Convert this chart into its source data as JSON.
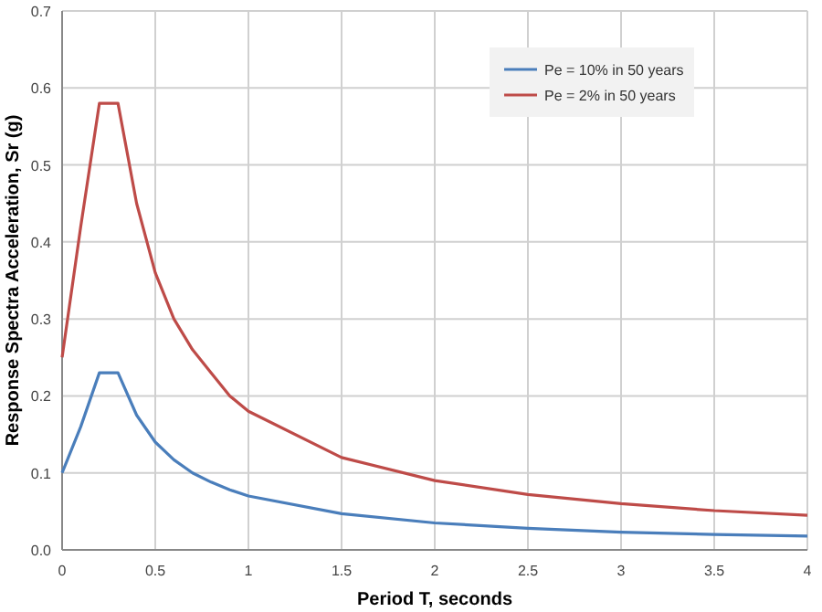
{
  "chart_data": {
    "type": "line",
    "xlabel": "Period T, seconds",
    "ylabel": "Response Spectra Acceleration, Sr (g)",
    "x": [
      0,
      0.1,
      0.2,
      0.3,
      0.4,
      0.5,
      0.6,
      0.7,
      0.8,
      0.9,
      1,
      1.5,
      2,
      2.5,
      3,
      3.5,
      4
    ],
    "series": [
      {
        "name": "Pe = 10% in 50 years",
        "color": "#4a7ebb",
        "values": [
          0.1,
          0.16,
          0.23,
          0.23,
          0.175,
          0.14,
          0.117,
          0.1,
          0.088,
          0.078,
          0.07,
          0.047,
          0.035,
          0.028,
          0.023,
          0.02,
          0.018
        ]
      },
      {
        "name": "Pe = 2% in 50 years",
        "color": "#be4b48",
        "values": [
          0.25,
          0.42,
          0.58,
          0.58,
          0.45,
          0.36,
          0.3,
          0.26,
          0.23,
          0.2,
          0.18,
          0.12,
          0.09,
          0.072,
          0.06,
          0.051,
          0.045
        ]
      }
    ],
    "xlim": [
      0,
      4
    ],
    "xticks": [
      0,
      0.5,
      1,
      1.5,
      2,
      2.5,
      3,
      3.5,
      4
    ],
    "ylim": [
      0,
      0.7
    ],
    "yticks": [
      {
        "value": 0,
        "label": "0.0"
      },
      0.1,
      0.2,
      0.3,
      0.4,
      0.5,
      0.6,
      0.7
    ],
    "grid": true,
    "legend": "top right",
    "marker": "none",
    "line_style": "solid"
  }
}
